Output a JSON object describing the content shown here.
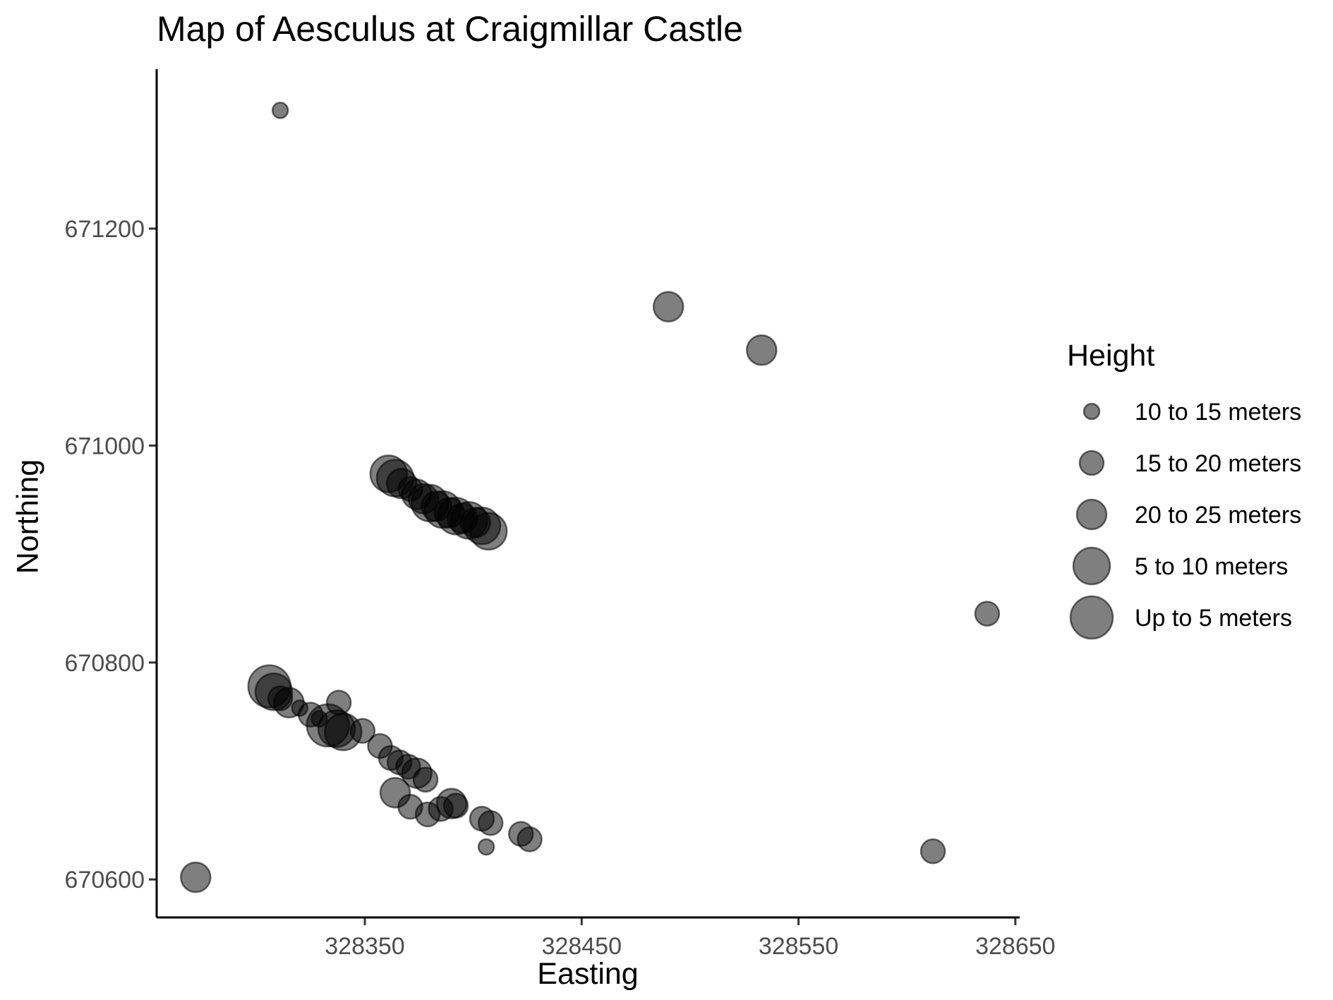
{
  "chart_data": {
    "type": "scatter",
    "title": "Map of Aesculus at Craigmillar Castle",
    "xlabel": "Easting",
    "ylabel": "Northing",
    "xlim": [
      328254,
      328652
    ],
    "ylim": [
      670565,
      671347
    ],
    "xticks": [
      328350,
      328450,
      328550,
      328650
    ],
    "yticks": [
      670600,
      670800,
      671000,
      671200
    ],
    "grid": false,
    "point_color": "#000000",
    "point_opacity": 0.5,
    "legend": {
      "title": "Height",
      "position": "right",
      "entries": [
        "10 to 15 meters",
        "15 to 20 meters",
        "20 to 25 meters",
        "5 to 10 meters",
        "Up to 5 meters"
      ]
    },
    "points": [
      {
        "x": 328311,
        "y": 671309,
        "height": "10 to 15 meters"
      },
      {
        "x": 328490,
        "y": 671128,
        "height": "20 to 25 meters"
      },
      {
        "x": 328533,
        "y": 671088,
        "height": "20 to 25 meters"
      },
      {
        "x": 328637,
        "y": 670845,
        "height": "15 to 20 meters"
      },
      {
        "x": 328612,
        "y": 670626,
        "height": "15 to 20 meters"
      },
      {
        "x": 328272,
        "y": 670602,
        "height": "20 to 25 meters"
      },
      {
        "x": 328361,
        "y": 670974,
        "height": "5 to 10 meters"
      },
      {
        "x": 328364,
        "y": 670970,
        "height": "5 to 10 meters"
      },
      {
        "x": 328367,
        "y": 670965,
        "height": "20 to 25 meters"
      },
      {
        "x": 328371,
        "y": 670960,
        "height": "15 to 20 meters"
      },
      {
        "x": 328374,
        "y": 670955,
        "height": "20 to 25 meters"
      },
      {
        "x": 328377,
        "y": 670951,
        "height": "20 to 25 meters"
      },
      {
        "x": 328380,
        "y": 670947,
        "height": "5 to 10 meters"
      },
      {
        "x": 328383,
        "y": 670944,
        "height": "20 to 25 meters"
      },
      {
        "x": 328386,
        "y": 670941,
        "height": "5 to 10 meters"
      },
      {
        "x": 328389,
        "y": 670938,
        "height": "20 to 25 meters"
      },
      {
        "x": 328392,
        "y": 670935,
        "height": "5 to 10 meters"
      },
      {
        "x": 328395,
        "y": 670933,
        "height": "20 to 25 meters"
      },
      {
        "x": 328398,
        "y": 670931,
        "height": "5 to 10 meters"
      },
      {
        "x": 328401,
        "y": 670929,
        "height": "20 to 25 meters"
      },
      {
        "x": 328404,
        "y": 670926,
        "height": "5 to 10 meters"
      },
      {
        "x": 328407,
        "y": 670921,
        "height": "5 to 10 meters"
      },
      {
        "x": 328306,
        "y": 670778,
        "height": "Up to 5 meters"
      },
      {
        "x": 328308,
        "y": 670773,
        "height": "5 to 10 meters"
      },
      {
        "x": 328311,
        "y": 670767,
        "height": "15 to 20 meters"
      },
      {
        "x": 328315,
        "y": 670763,
        "height": "20 to 25 meters"
      },
      {
        "x": 328320,
        "y": 670758,
        "height": "10 to 15 meters"
      },
      {
        "x": 328325,
        "y": 670752,
        "height": "15 to 20 meters"
      },
      {
        "x": 328329,
        "y": 670748,
        "height": "10 to 15 meters"
      },
      {
        "x": 328333,
        "y": 670742,
        "height": "Up to 5 meters"
      },
      {
        "x": 328337,
        "y": 670739,
        "height": "5 to 10 meters"
      },
      {
        "x": 328338,
        "y": 670763,
        "height": "15 to 20 meters"
      },
      {
        "x": 328340,
        "y": 670736,
        "height": "5 to 10 meters"
      },
      {
        "x": 328349,
        "y": 670737,
        "height": "15 to 20 meters"
      },
      {
        "x": 328357,
        "y": 670723,
        "height": "15 to 20 meters"
      },
      {
        "x": 328362,
        "y": 670712,
        "height": "15 to 20 meters"
      },
      {
        "x": 328366,
        "y": 670708,
        "height": "15 to 20 meters"
      },
      {
        "x": 328370,
        "y": 670704,
        "height": "15 to 20 meters"
      },
      {
        "x": 328374,
        "y": 670698,
        "height": "20 to 25 meters"
      },
      {
        "x": 328378,
        "y": 670692,
        "height": "15 to 20 meters"
      },
      {
        "x": 328364,
        "y": 670680,
        "height": "20 to 25 meters"
      },
      {
        "x": 328371,
        "y": 670667,
        "height": "15 to 20 meters"
      },
      {
        "x": 328379,
        "y": 670660,
        "height": "15 to 20 meters"
      },
      {
        "x": 328385,
        "y": 670665,
        "height": "15 to 20 meters"
      },
      {
        "x": 328390,
        "y": 670670,
        "height": "20 to 25 meters"
      },
      {
        "x": 328392,
        "y": 670668,
        "height": "15 to 20 meters"
      },
      {
        "x": 328404,
        "y": 670656,
        "height": "15 to 20 meters"
      },
      {
        "x": 328408,
        "y": 670652,
        "height": "15 to 20 meters"
      },
      {
        "x": 328406,
        "y": 670630,
        "height": "10 to 15 meters"
      },
      {
        "x": 328422,
        "y": 670642,
        "height": "15 to 20 meters"
      },
      {
        "x": 328426,
        "y": 670637,
        "height": "15 to 20 meters"
      }
    ]
  }
}
